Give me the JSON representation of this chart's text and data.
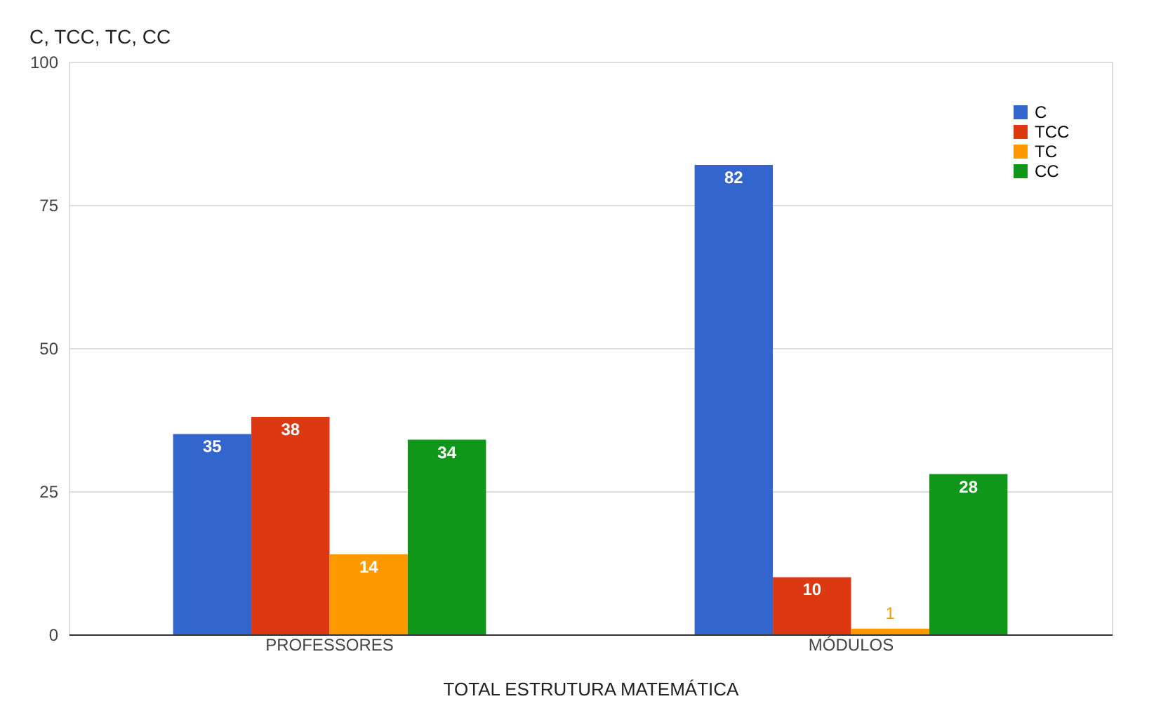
{
  "chart_data": {
    "type": "bar",
    "title": "C, TCC, TC, CC",
    "xlabel": "TOTAL ESTRUTURA MATEMÁTICA",
    "categories": [
      "PROFESSORES",
      "MÓDULOS"
    ],
    "series": [
      {
        "name": "C",
        "color": "#3366cc",
        "values": [
          35,
          82
        ]
      },
      {
        "name": "TCC",
        "color": "#dc3912",
        "values": [
          38,
          10
        ]
      },
      {
        "name": "TC",
        "color": "#ff9900",
        "values": [
          14,
          1
        ]
      },
      {
        "name": "CC",
        "color": "#109618",
        "values": [
          34,
          28
        ]
      }
    ],
    "ylim": [
      0,
      100
    ],
    "yticks": [
      0,
      25,
      50,
      75,
      100
    ],
    "grid": "y",
    "legend": "top right",
    "data_labels": true
  }
}
